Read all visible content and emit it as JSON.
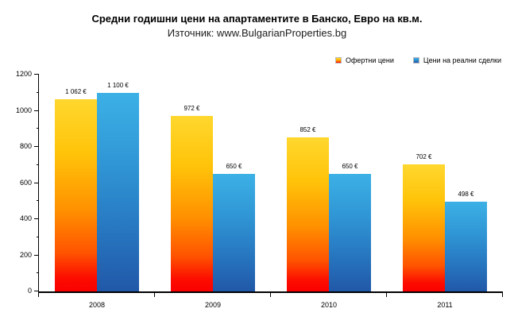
{
  "chart_data": {
    "type": "bar",
    "title": "Средни годишни цени на апартаментите в Банско, Евро на кв.м.",
    "subtitle": "Източник: www.BulgarianProperties.bg",
    "categories": [
      "2008",
      "2009",
      "2010",
      "2011"
    ],
    "series": [
      {
        "name": "Офертни цени",
        "values": [
          1062,
          972,
          852,
          702
        ],
        "labels": [
          "1 062 €",
          "972 €",
          "852 €",
          "702 €"
        ],
        "gradient": [
          [
            "#ffd72e",
            "0%"
          ],
          [
            "#ffc40a",
            "28%"
          ],
          [
            "#ff9000",
            "58%"
          ],
          [
            "#ff5300",
            "80%"
          ],
          [
            "#fc0d00",
            "93%"
          ],
          [
            "#fa0000",
            "100%"
          ]
        ]
      },
      {
        "name": "Цени на реални сделки",
        "values": [
          1100,
          650,
          650,
          498
        ],
        "labels": [
          "1 100 €",
          "650 €",
          "650 €",
          "498 €"
        ],
        "gradient": [
          [
            "#3cb1e6",
            "0%"
          ],
          [
            "#2f94d4",
            "38%"
          ],
          [
            "#2776bf",
            "70%"
          ],
          [
            "#2158a8",
            "100%"
          ]
        ]
      }
    ],
    "ylim": [
      0,
      1200
    ],
    "ytick_step": 200,
    "yminor_step": 100,
    "grid": false,
    "legend_position": "top-right",
    "axis_color": "#000000",
    "background": "#ffffff"
  }
}
